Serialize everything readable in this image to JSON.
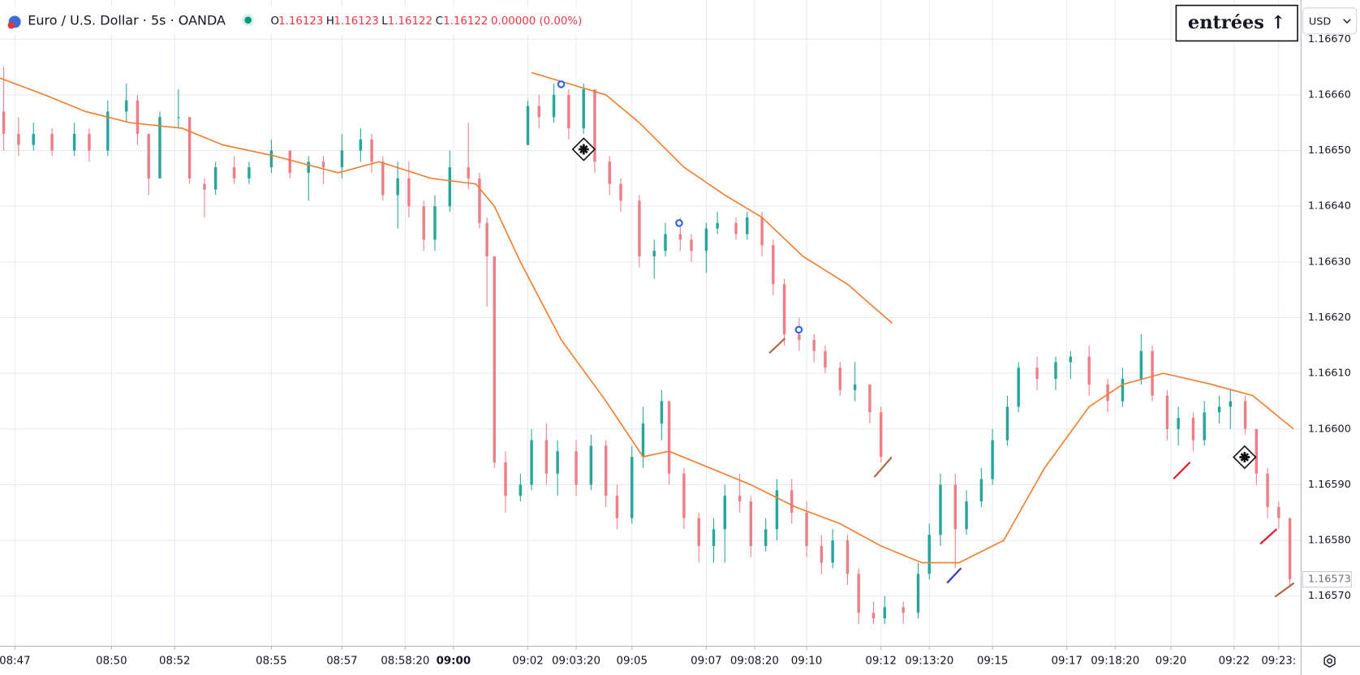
{
  "chart_data": {
    "type": "candlestick",
    "title": "Euro / U.S. Dollar · 5s · OANDA",
    "ohlc_labels": [
      "O",
      "H",
      "L",
      "C"
    ],
    "ohlc_values": [
      1.16123,
      1.16123,
      1.16122,
      1.16122
    ],
    "change": "0.00000 (0.00%)",
    "button": "entrées ↑",
    "currency": "USD",
    "last_price": 1.16573,
    "grid": true,
    "xlim": [
      0,
      350
    ],
    "ylim": [
      1.16561,
      1.16677
    ],
    "yticks": [
      {
        "value": 1.1657,
        "label": "1.16570"
      },
      {
        "value": 1.1658,
        "label": "1.16580"
      },
      {
        "value": 1.1659,
        "label": "1.16590"
      },
      {
        "value": 1.166,
        "label": "1.16600"
      },
      {
        "value": 1.1661,
        "label": "1.16610"
      },
      {
        "value": 1.1662,
        "label": "1.16620"
      },
      {
        "value": 1.1663,
        "label": "1.16630"
      },
      {
        "value": 1.1664,
        "label": "1.16640"
      },
      {
        "value": 1.1665,
        "label": "1.16650"
      },
      {
        "value": 1.1666,
        "label": "1.16660"
      },
      {
        "value": 1.1667,
        "label": "1.16670"
      }
    ],
    "xticks": [
      {
        "value": 4,
        "label": "08:47"
      },
      {
        "value": 30,
        "label": "08:50"
      },
      {
        "value": 47,
        "label": "08:52"
      },
      {
        "value": 73,
        "label": "08:55"
      },
      {
        "value": 92,
        "label": "08:57"
      },
      {
        "value": 109,
        "label": "08:58:20"
      },
      {
        "value": 122,
        "label": "09:00"
      },
      {
        "value": 142,
        "label": "09:02"
      },
      {
        "value": 155,
        "label": "09:03:20"
      },
      {
        "value": 170,
        "label": "09:05"
      },
      {
        "value": 190,
        "label": "09:07"
      },
      {
        "value": 203,
        "label": "09:08:20"
      },
      {
        "value": 217,
        "label": "09:10"
      },
      {
        "value": 237,
        "label": "09:12"
      },
      {
        "value": 250,
        "label": "09:13:20"
      },
      {
        "value": 267,
        "label": "09:15"
      },
      {
        "value": 287,
        "label": "09:17"
      },
      {
        "value": 300,
        "label": "09:18:20"
      },
      {
        "value": 315,
        "label": "09:20"
      },
      {
        "value": 332,
        "label": "09:22"
      },
      {
        "value": 344,
        "label": "09:23:"
      }
    ],
    "candles": [
      {
        "up_color": "#26a69a",
        "down_color": "#ef7d86",
        "x": [
          1,
          5,
          9,
          14,
          20,
          24,
          29,
          34,
          37,
          40,
          43,
          48,
          51,
          55,
          58,
          63,
          67,
          73,
          78,
          83,
          87,
          92,
          97,
          100,
          103,
          107,
          110,
          114,
          117,
          121,
          126,
          129,
          131,
          133,
          136,
          140,
          143,
          147,
          150,
          155,
          159,
          163,
          166,
          170,
          173,
          178,
          180,
          184,
          188,
          192,
          195,
          199,
          202,
          206,
          209,
          213,
          217,
          221,
          224,
          228,
          231,
          235,
          238,
          243,
          247,
          250,
          253,
          257,
          260,
          264,
          267,
          271,
          274,
          279,
          284,
          288,
          293,
          298,
          302,
          307,
          310,
          314,
          317,
          321,
          324,
          328,
          331,
          335,
          338,
          341,
          344,
          347
        ],
        "open": [
          1.16657,
          1.16653,
          1.16651,
          1.16653,
          1.1665,
          1.16653,
          1.1665,
          1.16657,
          1.16659,
          1.16653,
          1.16645,
          1.16656,
          1.16656,
          1.16644,
          1.16643,
          1.16647,
          1.16645,
          1.16647,
          1.1665,
          1.16646,
          1.16648,
          1.16647,
          1.1665,
          1.16652,
          1.16648,
          1.16642,
          1.16645,
          1.1664,
          1.16634,
          1.1664,
          1.16647,
          1.16645,
          1.16637,
          1.16631,
          1.16594,
          1.16588,
          1.1659,
          1.16598,
          1.16592,
          1.16596,
          1.1659,
          1.16597,
          1.16588,
          1.16584,
          1.16595,
          1.16601,
          1.16605,
          1.16592,
          1.16584,
          1.16579,
          1.16582,
          1.16588,
          1.16587,
          1.16579,
          1.16582,
          1.16589,
          1.16585,
          1.16579,
          1.16576,
          1.1658,
          1.16574,
          1.16567,
          1.16566,
          1.16568,
          1.16567,
          1.16574,
          1.16581,
          1.1659,
          1.16582,
          1.16587,
          1.16591,
          1.16598,
          1.16604,
          1.16611,
          1.16609,
          1.16612,
          1.16613,
          1.16608,
          1.16605,
          1.16609,
          1.16614,
          1.16606,
          1.166,
          1.16602,
          1.16598,
          1.16603,
          1.16604,
          1.16605,
          1.166,
          1.16592,
          1.16586,
          1.16584
        ],
        "high": [
          1.16665,
          1.16656,
          1.16655,
          1.16654,
          1.16655,
          1.16654,
          1.16659,
          1.16662,
          1.1666,
          1.16653,
          1.16657,
          1.16661,
          1.16656,
          1.16645,
          1.16648,
          1.16649,
          1.16648,
          1.16652,
          1.1665,
          1.16649,
          1.16649,
          1.16653,
          1.16654,
          1.16653,
          1.16649,
          1.16648,
          1.16648,
          1.16641,
          1.16642,
          1.1665,
          1.16655,
          1.16646,
          1.16638,
          1.16631,
          1.16596,
          1.16592,
          1.166,
          1.16601,
          1.16598,
          1.16598,
          1.16599,
          1.16598,
          1.1659,
          1.16597,
          1.16604,
          1.16607,
          1.16605,
          1.16593,
          1.16585,
          1.16584,
          1.1659,
          1.16592,
          1.16588,
          1.16584,
          1.16591,
          1.16591,
          1.16587,
          1.16581,
          1.16582,
          1.16581,
          1.16575,
          1.16569,
          1.1657,
          1.16569,
          1.16576,
          1.16583,
          1.16592,
          1.16592,
          1.16589,
          1.16593,
          1.166,
          1.16606,
          1.16612,
          1.16613,
          1.16613,
          1.16614,
          1.16615,
          1.16609,
          1.16611,
          1.16617,
          1.16615,
          1.16607,
          1.16604,
          1.16603,
          1.16605,
          1.16606,
          1.16607,
          1.16606,
          1.166,
          1.16593,
          1.16587,
          1.16584
        ],
        "low": [
          1.1665,
          1.16649,
          1.1665,
          1.16649,
          1.16649,
          1.16648,
          1.16649,
          1.16655,
          1.16651,
          1.16642,
          1.16645,
          1.16654,
          1.16644,
          1.16638,
          1.16642,
          1.16644,
          1.16644,
          1.16646,
          1.16645,
          1.16641,
          1.16644,
          1.16645,
          1.16648,
          1.16646,
          1.16641,
          1.16636,
          1.16638,
          1.16632,
          1.16632,
          1.16639,
          1.16643,
          1.16636,
          1.16622,
          1.16593,
          1.16585,
          1.16587,
          1.16589,
          1.1659,
          1.16588,
          1.16588,
          1.16589,
          1.16586,
          1.16582,
          1.16583,
          1.16593,
          1.16598,
          1.1659,
          1.16582,
          1.16576,
          1.16576,
          1.16576,
          1.16585,
          1.16577,
          1.16578,
          1.1658,
          1.16583,
          1.16577,
          1.16574,
          1.16575,
          1.16572,
          1.16565,
          1.16565,
          1.16565,
          1.16565,
          1.16566,
          1.16573,
          1.16579,
          1.16575,
          1.16581,
          1.16586,
          1.1659,
          1.16597,
          1.16603,
          1.16607,
          1.16607,
          1.16609,
          1.16606,
          1.16603,
          1.16604,
          1.16608,
          1.16605,
          1.16598,
          1.16597,
          1.16596,
          1.16597,
          1.16601,
          1.166,
          1.16599,
          1.1659,
          1.16584,
          1.16582,
          1.16572
        ],
        "close": [
          1.16653,
          1.16651,
          1.16653,
          1.1665,
          1.16653,
          1.1665,
          1.16657,
          1.16659,
          1.16653,
          1.16645,
          1.16656,
          1.16656,
          1.16645,
          1.16643,
          1.16647,
          1.16645,
          1.16647,
          1.1665,
          1.16646,
          1.16648,
          1.16647,
          1.1665,
          1.16652,
          1.16648,
          1.16642,
          1.16645,
          1.1664,
          1.16634,
          1.1664,
          1.16647,
          1.16645,
          1.16637,
          1.16631,
          1.16594,
          1.16588,
          1.1659,
          1.16598,
          1.16592,
          1.16596,
          1.1659,
          1.16597,
          1.16588,
          1.16584,
          1.16595,
          1.16601,
          1.16605,
          1.16592,
          1.16584,
          1.16579,
          1.16582,
          1.16588,
          1.16587,
          1.16579,
          1.16582,
          1.16589,
          1.16585,
          1.16579,
          1.16576,
          1.1658,
          1.16574,
          1.16567,
          1.16566,
          1.16568,
          1.16567,
          1.16574,
          1.16581,
          1.1659,
          1.16582,
          1.16587,
          1.16591,
          1.16598,
          1.16604,
          1.16611,
          1.16609,
          1.16612,
          1.16613,
          1.16608,
          1.16605,
          1.16609,
          1.16614,
          1.16606,
          1.166,
          1.16602,
          1.16598,
          1.16603,
          1.16604,
          1.16605,
          1.166,
          1.16592,
          1.16586,
          1.16584,
          1.16573
        ]
      },
      {
        "up_color": "#26a69a",
        "down_color": "#ef7d86",
        "x": [
          142,
          145,
          149,
          153,
          157,
          160,
          164,
          167,
          172,
          176,
          179,
          183,
          186,
          190,
          193,
          198,
          201,
          205,
          208,
          211,
          215,
          219,
          222,
          226,
          230,
          234,
          237
        ],
        "open": [
          1.16651,
          1.16658,
          1.16656,
          1.1666,
          1.16654,
          1.16661,
          1.16648,
          1.16644,
          1.16641,
          1.16631,
          1.16632,
          1.16635,
          1.16634,
          1.16632,
          1.16636,
          1.16637,
          1.16635,
          1.16638,
          1.16633,
          1.16626,
          1.16617,
          1.16616,
          1.16614,
          1.16611,
          1.16607,
          1.16608,
          1.16603
        ],
        "high": [
          1.16659,
          1.1666,
          1.16662,
          1.16661,
          1.16662,
          1.16661,
          1.16649,
          1.16645,
          1.16642,
          1.16634,
          1.16637,
          1.16638,
          1.16635,
          1.16637,
          1.16639,
          1.16638,
          1.16639,
          1.16639,
          1.16634,
          1.16627,
          1.1662,
          1.16617,
          1.16615,
          1.16612,
          1.16612,
          1.16608,
          1.16604
        ],
        "low": [
          1.16651,
          1.16654,
          1.16655,
          1.16652,
          1.16653,
          1.16646,
          1.16642,
          1.16639,
          1.16629,
          1.16627,
          1.16631,
          1.16632,
          1.1663,
          1.16628,
          1.16635,
          1.16634,
          1.16634,
          1.16631,
          1.16624,
          1.16615,
          1.16614,
          1.16612,
          1.1661,
          1.16606,
          1.16605,
          1.16601,
          1.16594
        ],
        "close": [
          1.16658,
          1.16656,
          1.1666,
          1.16654,
          1.16661,
          1.16648,
          1.16644,
          1.16641,
          1.16631,
          1.16632,
          1.16635,
          1.16634,
          1.16632,
          1.16636,
          1.16637,
          1.16635,
          1.16638,
          1.16633,
          1.16626,
          1.16617,
          1.16616,
          1.16614,
          1.16611,
          1.16607,
          1.16608,
          1.16603,
          1.16595
        ]
      }
    ],
    "lines": [
      {
        "color": "#f57c2a",
        "x": [
          0,
          12,
          23,
          35,
          49,
          60,
          74,
          91,
          102,
          116,
          128,
          133,
          140,
          151,
          163,
          173,
          180,
          191,
          202,
          214,
          226,
          237,
          248,
          258,
          270,
          281,
          293,
          302,
          313,
          326,
          337,
          348
        ],
        "values": [
          1.16663,
          1.1666,
          1.16657,
          1.16655,
          1.16654,
          1.16651,
          1.16649,
          1.16646,
          1.16648,
          1.16645,
          1.16644,
          1.1664,
          1.1663,
          1.16616,
          1.16605,
          1.16595,
          1.16596,
          1.16593,
          1.1659,
          1.16586,
          1.16583,
          1.16579,
          1.16576,
          1.16576,
          1.1658,
          1.16593,
          1.16604,
          1.16608,
          1.1661,
          1.16608,
          1.16606,
          1.166
        ]
      },
      {
        "color": "#f57c2a",
        "x": [
          143,
          153,
          163,
          172,
          184,
          195,
          205,
          216,
          228,
          240
        ],
        "values": [
          1.16664,
          1.16662,
          1.1666,
          1.16655,
          1.16647,
          1.16642,
          1.16638,
          1.16631,
          1.16626,
          1.16619
        ]
      }
    ]
  }
}
